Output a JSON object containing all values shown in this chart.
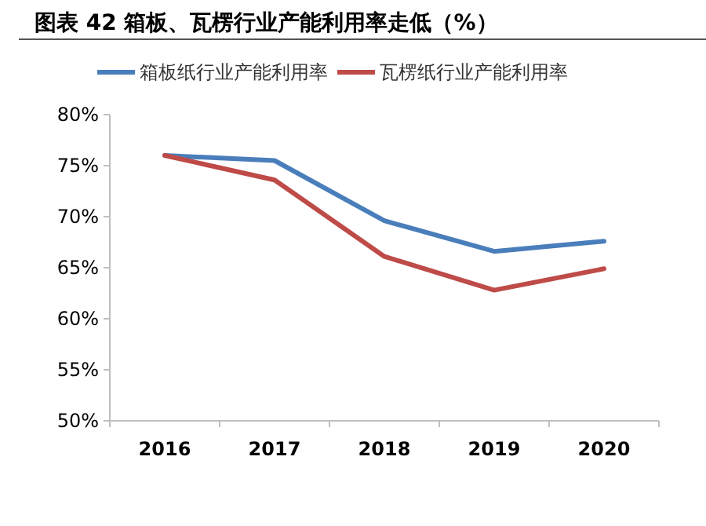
{
  "chart_data": {
    "type": "line",
    "title": "图表 42 箱板、瓦楞行业产能利用率走低（%）",
    "categories": [
      "2016",
      "2017",
      "2018",
      "2019",
      "2020"
    ],
    "series": [
      {
        "name": "箱板纸行业产能利用率",
        "color": "#4a7ebb",
        "values": [
          76.0,
          75.5,
          69.6,
          66.6,
          67.6
        ]
      },
      {
        "name": "瓦楞纸行业产能利用率",
        "color": "#be4b48",
        "values": [
          76.0,
          73.6,
          66.1,
          62.8,
          64.9
        ]
      }
    ],
    "ylim": [
      50,
      80
    ],
    "yticks": [
      {
        "value": 50,
        "label": "50%"
      },
      {
        "value": 55,
        "label": "55%"
      },
      {
        "value": 60,
        "label": "60%"
      },
      {
        "value": 65,
        "label": "65%"
      },
      {
        "value": 70,
        "label": "70%"
      },
      {
        "value": 75,
        "label": "75%"
      },
      {
        "value": 80,
        "label": "80%"
      }
    ],
    "legend": "top",
    "grid": false,
    "marker": "none",
    "line_style": "solid"
  }
}
